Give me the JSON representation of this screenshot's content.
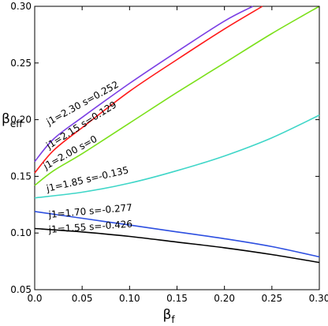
{
  "chart_data": {
    "type": "line",
    "title": "",
    "xlabel": {
      "main": "β",
      "sub": "f"
    },
    "ylabel": {
      "main": "β",
      "sub": "eff"
    },
    "xlim": [
      0.0,
      0.3
    ],
    "ylim": [
      0.05,
      0.3
    ],
    "xticks": [
      "0.0",
      "0.05",
      "0.10",
      "0.15",
      "0.20",
      "0.25",
      "0.30"
    ],
    "yticks": [
      "0.05",
      "0.10",
      "0.15",
      "0.20",
      "0.25",
      "0.30"
    ],
    "grid": false,
    "legend": "none",
    "series": [
      {
        "name": "j1=2.30 s=0.252",
        "color": "#7b3fe4",
        "x": [
          0.0,
          0.02,
          0.05,
          0.1,
          0.15,
          0.2,
          0.23
        ],
        "y": [
          0.163,
          0.183,
          0.202,
          0.232,
          0.26,
          0.287,
          0.3
        ]
      },
      {
        "name": "j1=2.15 s=0.129",
        "color": "#ff1a1a",
        "x": [
          0.0,
          0.02,
          0.05,
          0.1,
          0.15,
          0.2,
          0.24
        ],
        "y": [
          0.153,
          0.173,
          0.193,
          0.225,
          0.253,
          0.28,
          0.3
        ]
      },
      {
        "name": "j1=2.00 s=0",
        "color": "#7be01a",
        "x": [
          0.0,
          0.02,
          0.05,
          0.1,
          0.15,
          0.2,
          0.25,
          0.3
        ],
        "y": [
          0.142,
          0.155,
          0.17,
          0.197,
          0.224,
          0.25,
          0.276,
          0.3
        ]
      },
      {
        "name": "j1=1.85 s=-0.135",
        "color": "#3fd6c8",
        "x": [
          0.0,
          0.05,
          0.1,
          0.15,
          0.2,
          0.25,
          0.3
        ],
        "y": [
          0.131,
          0.136,
          0.144,
          0.155,
          0.168,
          0.184,
          0.204
        ]
      },
      {
        "name": "j1=1.70 s=-0.277",
        "color": "#2d4fe0",
        "x": [
          0.0,
          0.05,
          0.1,
          0.15,
          0.2,
          0.25,
          0.3
        ],
        "y": [
          0.119,
          0.113,
          0.107,
          0.101,
          0.095,
          0.088,
          0.079
        ]
      },
      {
        "name": "j1=1.55 s=-0.426",
        "color": "#000000",
        "x": [
          0.0,
          0.05,
          0.1,
          0.15,
          0.2,
          0.25,
          0.3
        ],
        "y": [
          0.104,
          0.101,
          0.097,
          0.092,
          0.087,
          0.081,
          0.074
        ]
      }
    ]
  }
}
